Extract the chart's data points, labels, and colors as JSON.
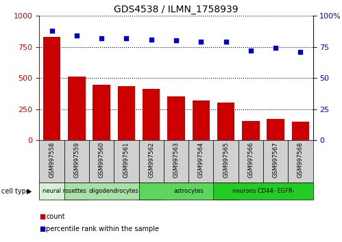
{
  "title": "GDS4538 / ILMN_1758939",
  "samples": [
    "GSM997558",
    "GSM997559",
    "GSM997560",
    "GSM997561",
    "GSM997562",
    "GSM997563",
    "GSM997564",
    "GSM997565",
    "GSM997566",
    "GSM997567",
    "GSM997568"
  ],
  "counts": [
    830,
    510,
    445,
    435,
    415,
    355,
    320,
    305,
    155,
    170,
    150
  ],
  "percentile_ranks": [
    88,
    84,
    82,
    82,
    81,
    80,
    79,
    79,
    72,
    74,
    71
  ],
  "bar_color": "#cc0000",
  "dot_color": "#0000cc",
  "ylim_left": [
    0,
    1000
  ],
  "ylim_right": [
    0,
    100
  ],
  "yticks_left": [
    0,
    250,
    500,
    750,
    1000
  ],
  "yticks_right": [
    0,
    25,
    50,
    75,
    100
  ],
  "cell_type_groups": [
    {
      "label": "neural rosettes",
      "start": 0,
      "end": 1,
      "color": "#d8f0d8"
    },
    {
      "label": "oligodendrocytes",
      "start": 1,
      "end": 4,
      "color": "#a8e0a8"
    },
    {
      "label": "astrocytes",
      "start": 4,
      "end": 7,
      "color": "#5cd65c"
    },
    {
      "label": "neurons CD44- EGFR-",
      "start": 7,
      "end": 10,
      "color": "#22cc22"
    }
  ],
  "legend_count_label": "count",
  "legend_pct_label": "percentile rank within the sample",
  "cell_type_label": "cell type",
  "fig_width": 4.99,
  "fig_height": 3.54,
  "dpi": 100
}
